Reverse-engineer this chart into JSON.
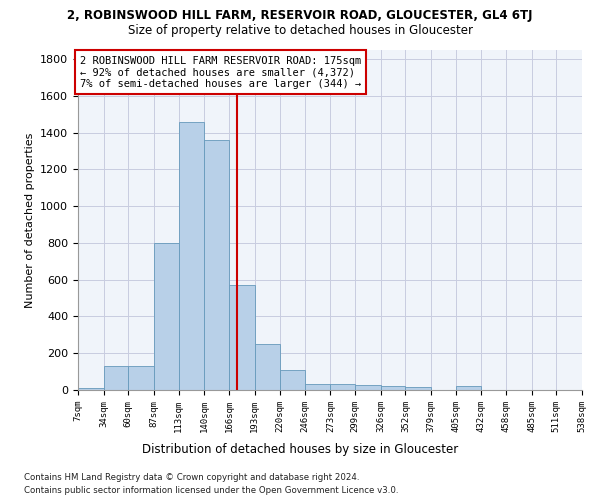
{
  "title": "2, ROBINSWOOD HILL FARM, RESERVOIR ROAD, GLOUCESTER, GL4 6TJ",
  "subtitle": "Size of property relative to detached houses in Gloucester",
  "xlabel": "Distribution of detached houses by size in Gloucester",
  "ylabel": "Number of detached properties",
  "bin_edges": [
    7,
    34,
    60,
    87,
    113,
    140,
    166,
    193,
    220,
    246,
    273,
    299,
    326,
    352,
    379,
    405,
    432,
    458,
    485,
    511,
    538
  ],
  "bar_heights": [
    10,
    130,
    130,
    800,
    1460,
    1360,
    570,
    250,
    110,
    35,
    30,
    25,
    20,
    15,
    0,
    20,
    0,
    0,
    0,
    0
  ],
  "bar_color": "#b8d0e8",
  "bar_edge_color": "#6699bb",
  "property_size": 175,
  "property_line_color": "#cc0000",
  "annotation_text": "2 ROBINSWOOD HILL FARM RESERVOIR ROAD: 175sqm\n← 92% of detached houses are smaller (4,372)\n7% of semi-detached houses are larger (344) →",
  "annotation_box_color": "#cc0000",
  "ylim": [
    0,
    1850
  ],
  "yticks": [
    0,
    200,
    400,
    600,
    800,
    1000,
    1200,
    1400,
    1600,
    1800
  ],
  "footer_line1": "Contains HM Land Registry data © Crown copyright and database right 2024.",
  "footer_line2": "Contains public sector information licensed under the Open Government Licence v3.0.",
  "bg_color": "#f0f4fa",
  "grid_color": "#c8cce0"
}
